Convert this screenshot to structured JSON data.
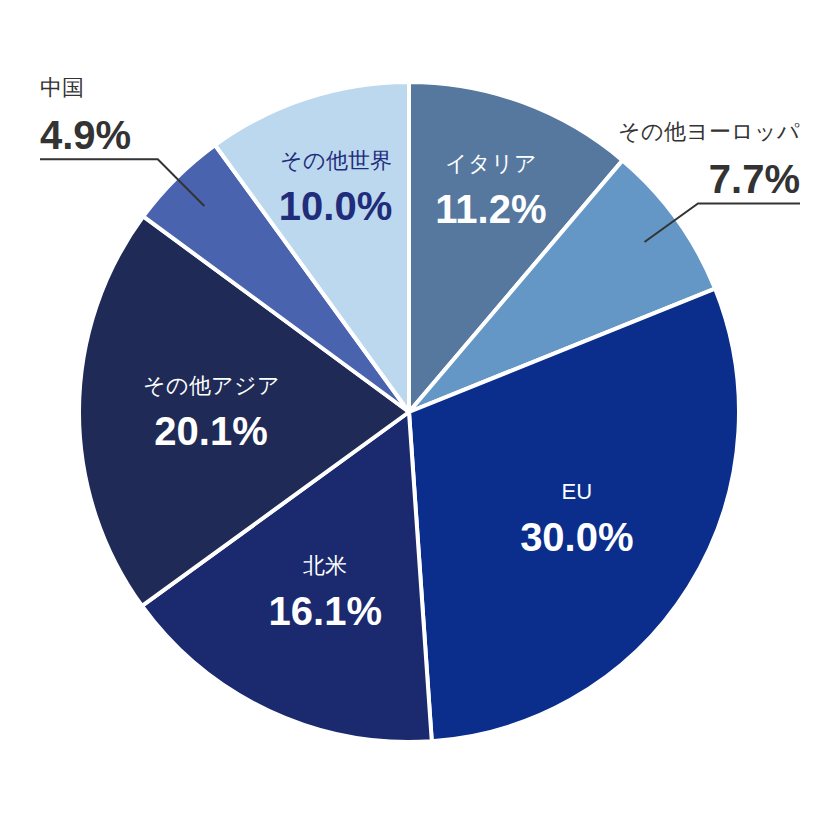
{
  "chart_data": {
    "type": "pie",
    "categories": [
      "イタリア",
      "その他ヨーロッパ",
      "EU",
      "北米",
      "その他アジア",
      "中国",
      "その他世界"
    ],
    "values": [
      11.2,
      7.7,
      30.0,
      16.1,
      20.1,
      4.9,
      10.0
    ],
    "value_labels": [
      "11.2%",
      "7.7%",
      "30.0%",
      "16.1%",
      "20.1%",
      "4.9%",
      "10.0%"
    ],
    "colors": [
      "#56789f",
      "#6497c5",
      "#0b2e8c",
      "#1b296e",
      "#1f2b56",
      "#4a63ae",
      "#bcd8ef"
    ],
    "data_labels": true
  }
}
